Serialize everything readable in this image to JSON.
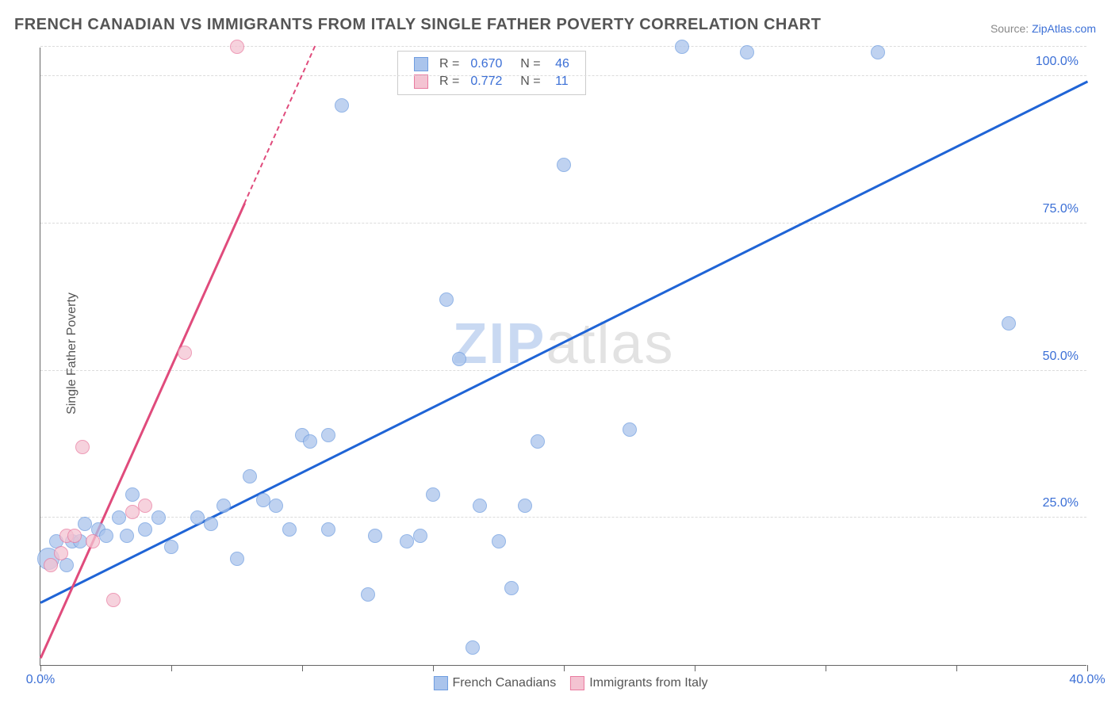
{
  "title": "FRENCH CANADIAN VS IMMIGRANTS FROM ITALY SINGLE FATHER POVERTY CORRELATION CHART",
  "source_label": "Source: ",
  "source_name": "ZipAtlas.com",
  "y_axis_label": "Single Father Poverty",
  "watermark": {
    "part1": "ZIP",
    "part2": "atlas"
  },
  "chart": {
    "type": "scatter",
    "xlim": [
      0,
      40
    ],
    "ylim": [
      0,
      105
    ],
    "background_color": "#ffffff",
    "grid_color": "#dcdcdc",
    "axis_color": "#666666",
    "x_ticks": [
      0,
      5,
      10,
      15,
      20,
      25,
      30,
      35,
      40
    ],
    "x_tick_labels": [
      {
        "pos": 0,
        "label": "0.0%"
      },
      {
        "pos": 40,
        "label": "40.0%"
      }
    ],
    "y_gridlines": [
      25,
      50,
      75,
      100,
      105
    ],
    "y_tick_labels": [
      {
        "pos": 25,
        "label": "25.0%"
      },
      {
        "pos": 50,
        "label": "50.0%"
      },
      {
        "pos": 75,
        "label": "75.0%"
      },
      {
        "pos": 100,
        "label": "100.0%"
      }
    ],
    "series": [
      {
        "name": "French Canadians",
        "color_fill": "#aac4ec",
        "color_stroke": "#6f9de0",
        "marker_radius": 9,
        "marker_opacity": 0.75,
        "trend": {
          "x1": 0,
          "y1": 10.5,
          "x2": 40,
          "y2": 99,
          "color": "#1f64d6",
          "width": 2.5,
          "dash_after_x": null
        },
        "R": "0.670",
        "N": "46",
        "points": [
          {
            "x": 0.3,
            "y": 18,
            "r": 14
          },
          {
            "x": 0.6,
            "y": 21
          },
          {
            "x": 1.0,
            "y": 17
          },
          {
            "x": 1.2,
            "y": 21
          },
          {
            "x": 1.5,
            "y": 21
          },
          {
            "x": 1.7,
            "y": 24
          },
          {
            "x": 2.2,
            "y": 23
          },
          {
            "x": 2.5,
            "y": 22
          },
          {
            "x": 3.0,
            "y": 25
          },
          {
            "x": 3.3,
            "y": 22
          },
          {
            "x": 3.5,
            "y": 29
          },
          {
            "x": 4.0,
            "y": 23
          },
          {
            "x": 4.5,
            "y": 25
          },
          {
            "x": 5.0,
            "y": 20
          },
          {
            "x": 6.0,
            "y": 25
          },
          {
            "x": 6.5,
            "y": 24
          },
          {
            "x": 7.0,
            "y": 27
          },
          {
            "x": 7.5,
            "y": 18
          },
          {
            "x": 8.5,
            "y": 28
          },
          {
            "x": 8.0,
            "y": 32
          },
          {
            "x": 9.0,
            "y": 27
          },
          {
            "x": 9.5,
            "y": 23
          },
          {
            "x": 10.0,
            "y": 39
          },
          {
            "x": 10.3,
            "y": 38
          },
          {
            "x": 11.0,
            "y": 39
          },
          {
            "x": 11.0,
            "y": 23
          },
          {
            "x": 11.5,
            "y": 95
          },
          {
            "x": 12.5,
            "y": 12
          },
          {
            "x": 12.8,
            "y": 22
          },
          {
            "x": 14.0,
            "y": 21
          },
          {
            "x": 14.5,
            "y": 22
          },
          {
            "x": 15.0,
            "y": 29
          },
          {
            "x": 15.5,
            "y": 62
          },
          {
            "x": 16.0,
            "y": 52
          },
          {
            "x": 16.5,
            "y": 3
          },
          {
            "x": 16.8,
            "y": 27
          },
          {
            "x": 17.5,
            "y": 21
          },
          {
            "x": 18.0,
            "y": 13
          },
          {
            "x": 18.5,
            "y": 27
          },
          {
            "x": 19.0,
            "y": 38
          },
          {
            "x": 20.0,
            "y": 85
          },
          {
            "x": 22.5,
            "y": 40
          },
          {
            "x": 24.5,
            "y": 105
          },
          {
            "x": 27.0,
            "y": 104
          },
          {
            "x": 32.0,
            "y": 104
          },
          {
            "x": 37.0,
            "y": 58
          }
        ]
      },
      {
        "name": "Immigrants from Italy",
        "color_fill": "#f4c3d2",
        "color_stroke": "#e97ba0",
        "marker_radius": 9,
        "marker_opacity": 0.75,
        "trend": {
          "x1": 0,
          "y1": 1,
          "x2": 10.5,
          "y2": 105,
          "color": "#e04b7c",
          "width": 2.5,
          "dash_after_x": 7.8
        },
        "R": "0.772",
        "N": "11",
        "points": [
          {
            "x": 0.4,
            "y": 17
          },
          {
            "x": 0.8,
            "y": 19
          },
          {
            "x": 1.0,
            "y": 22
          },
          {
            "x": 1.3,
            "y": 22
          },
          {
            "x": 1.6,
            "y": 37
          },
          {
            "x": 2.0,
            "y": 21
          },
          {
            "x": 2.8,
            "y": 11
          },
          {
            "x": 3.5,
            "y": 26
          },
          {
            "x": 4.0,
            "y": 27
          },
          {
            "x": 5.5,
            "y": 53
          },
          {
            "x": 7.5,
            "y": 105
          }
        ]
      }
    ]
  },
  "legend_top": {
    "rows": [
      {
        "swatch_fill": "#aac4ec",
        "swatch_stroke": "#6f9de0",
        "r_label": "R =",
        "r_val": "0.670",
        "n_label": "N =",
        "n_val": "46"
      },
      {
        "swatch_fill": "#f4c3d2",
        "swatch_stroke": "#e97ba0",
        "r_label": "R =",
        "r_val": "0.772",
        "n_label": "N =",
        "n_val": "11"
      }
    ]
  },
  "legend_bottom": {
    "items": [
      {
        "swatch_fill": "#aac4ec",
        "swatch_stroke": "#6f9de0",
        "label": "French Canadians"
      },
      {
        "swatch_fill": "#f4c3d2",
        "swatch_stroke": "#e97ba0",
        "label": "Immigrants from Italy"
      }
    ]
  }
}
